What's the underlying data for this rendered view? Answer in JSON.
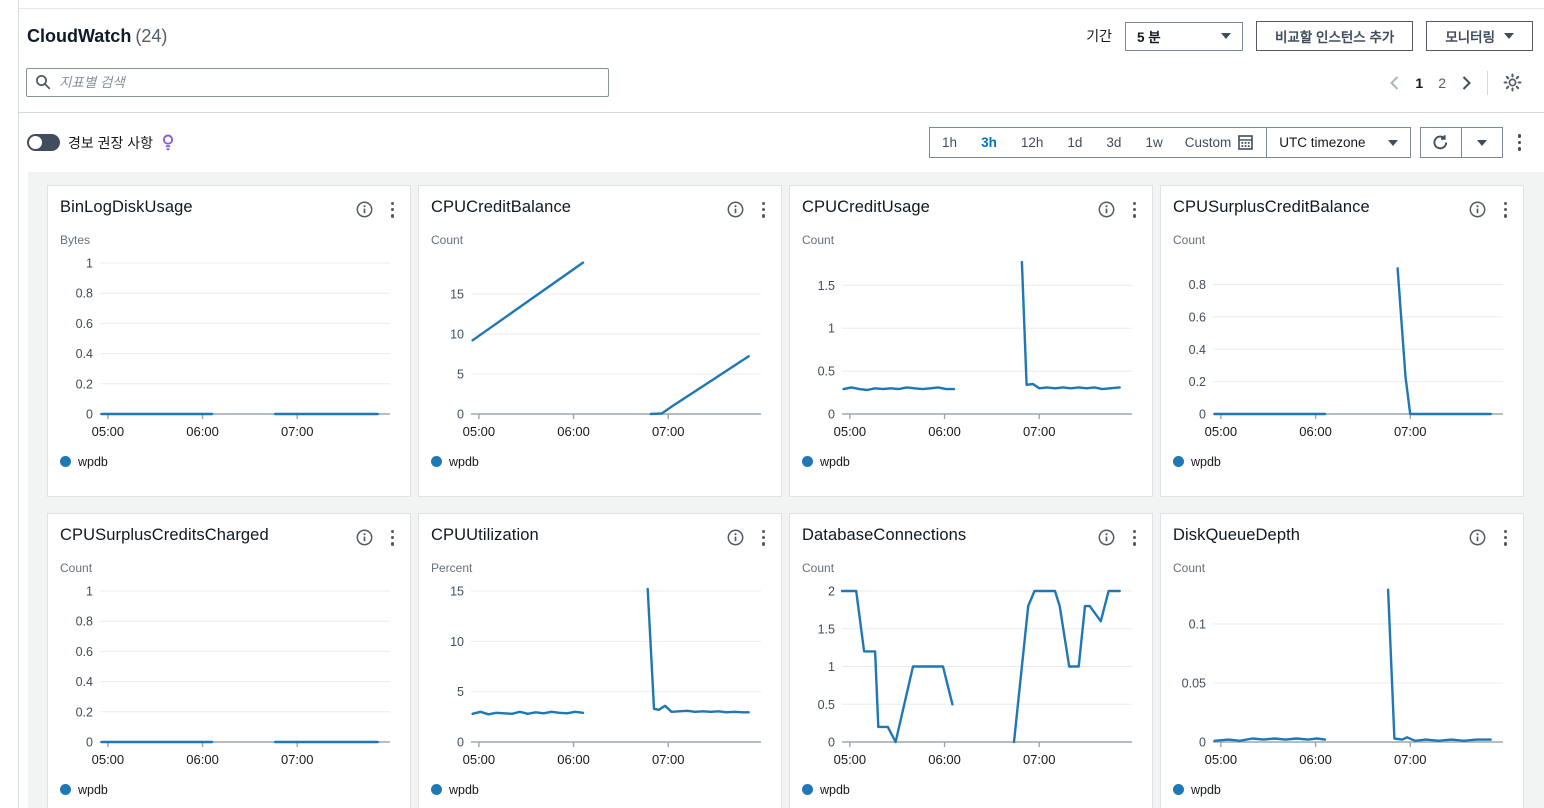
{
  "header": {
    "title": "CloudWatch",
    "count": "(24)",
    "period_label": "기간",
    "period_value": "5 분",
    "compare_instances_button": "비교할 인스턴스 추가",
    "monitoring_button": "모니터링"
  },
  "search": {
    "placeholder": "지표별 검색"
  },
  "pagination": {
    "page_1": "1",
    "page_2": "2"
  },
  "toolbar": {
    "alarm_recommendations_label": "경보 권장 사항",
    "ranges": [
      "1h",
      "3h",
      "12h",
      "1d",
      "3d",
      "1w"
    ],
    "selected_range": "3h",
    "custom_label": "Custom",
    "timezone_value": "UTC timezone"
  },
  "colors": {
    "line": "#1f77b4",
    "selected_range": "#0073bb",
    "bulb": "#8b5bd6"
  },
  "x_axis": {
    "ticks": [
      "05:00",
      "06:00",
      "07:00"
    ],
    "range": [
      "04:55",
      "07:55"
    ]
  },
  "chart_data": [
    {
      "type": "line",
      "title": "BinLogDiskUsage",
      "ylabel": "Bytes",
      "yticks": [
        1,
        0.8,
        0.6,
        0.4,
        0.2,
        0
      ],
      "ymax": 1.04,
      "series": [
        {
          "name": "wpdb",
          "segments": [
            [
              [
                "04:56",
                0
              ],
              [
                "06:06",
                0
              ]
            ],
            [
              [
                "06:46",
                0
              ],
              [
                "07:51",
                0
              ]
            ]
          ]
        }
      ]
    },
    {
      "type": "line",
      "title": "CPUCreditBalance",
      "ylabel": "Count",
      "yticks": [
        15,
        10,
        5,
        0
      ],
      "ymax": 19.6,
      "series": [
        {
          "name": "wpdb",
          "segments": [
            [
              [
                "04:56",
                9.2
              ],
              [
                "06:06",
                18.9
              ]
            ],
            [
              [
                "06:49",
                0
              ],
              [
                "06:56",
                0.08
              ],
              [
                "07:02",
                0.9
              ],
              [
                "07:51",
                7.2
              ]
            ]
          ]
        }
      ]
    },
    {
      "type": "line",
      "title": "CPUCreditUsage",
      "ylabel": "Count",
      "yticks": [
        1.5,
        1,
        0.5,
        0
      ],
      "ymax": 1.83,
      "series": [
        {
          "name": "wpdb",
          "segments": [
            [
              [
                "04:56",
                0.29
              ],
              [
                "05:01",
                0.31
              ],
              [
                "05:06",
                0.29
              ],
              [
                "05:11",
                0.28
              ],
              [
                "05:16",
                0.3
              ],
              [
                "05:21",
                0.29
              ],
              [
                "05:26",
                0.3
              ],
              [
                "05:31",
                0.29
              ],
              [
                "05:36",
                0.31
              ],
              [
                "05:41",
                0.3
              ],
              [
                "05:46",
                0.29
              ],
              [
                "05:51",
                0.3
              ],
              [
                "05:56",
                0.31
              ],
              [
                "06:01",
                0.29
              ],
              [
                "06:06",
                0.29
              ]
            ],
            [
              [
                "06:49",
                1.77
              ],
              [
                "06:52",
                0.34
              ],
              [
                "06:56",
                0.35
              ],
              [
                "07:00",
                0.3
              ],
              [
                "07:05",
                0.31
              ],
              [
                "07:10",
                0.3
              ],
              [
                "07:15",
                0.31
              ],
              [
                "07:20",
                0.3
              ],
              [
                "07:25",
                0.31
              ],
              [
                "07:30",
                0.3
              ],
              [
                "07:35",
                0.31
              ],
              [
                "07:40",
                0.29
              ],
              [
                "07:45",
                0.3
              ],
              [
                "07:51",
                0.31
              ]
            ]
          ]
        }
      ]
    },
    {
      "type": "line",
      "title": "CPUSurplusCreditBalance",
      "ylabel": "Count",
      "yticks": [
        0.8,
        0.6,
        0.4,
        0.2,
        0
      ],
      "ymax": 0.97,
      "series": [
        {
          "name": "wpdb",
          "segments": [
            [
              [
                "04:56",
                0
              ],
              [
                "06:06",
                0
              ]
            ],
            [
              [
                "06:52",
                0.9
              ],
              [
                "06:57",
                0.23
              ],
              [
                "07:00",
                0
              ],
              [
                "07:51",
                0
              ]
            ]
          ]
        }
      ]
    },
    {
      "type": "line",
      "title": "CPUSurplusCreditsCharged",
      "ylabel": "Count",
      "yticks": [
        1,
        0.8,
        0.6,
        0.4,
        0.2,
        0
      ],
      "ymax": 1.04,
      "series": [
        {
          "name": "wpdb",
          "segments": [
            [
              [
                "04:56",
                0
              ],
              [
                "06:06",
                0
              ]
            ],
            [
              [
                "06:46",
                0
              ],
              [
                "07:51",
                0
              ]
            ]
          ]
        }
      ]
    },
    {
      "type": "line",
      "title": "CPUUtilization",
      "ylabel": "Percent",
      "yticks": [
        15,
        10,
        5,
        0
      ],
      "ymax": 15.6,
      "series": [
        {
          "name": "wpdb",
          "segments": [
            [
              [
                "04:56",
                2.8
              ],
              [
                "05:01",
                3.0
              ],
              [
                "05:06",
                2.75
              ],
              [
                "05:11",
                2.9
              ],
              [
                "05:16",
                2.85
              ],
              [
                "05:21",
                2.8
              ],
              [
                "05:26",
                3.0
              ],
              [
                "05:31",
                2.8
              ],
              [
                "05:36",
                2.95
              ],
              [
                "05:41",
                2.85
              ],
              [
                "05:46",
                3.0
              ],
              [
                "05:51",
                2.9
              ],
              [
                "05:56",
                2.85
              ],
              [
                "06:01",
                3.0
              ],
              [
                "06:06",
                2.9
              ]
            ],
            [
              [
                "06:47",
                15.2
              ],
              [
                "06:51",
                3.3
              ],
              [
                "06:54",
                3.2
              ],
              [
                "06:58",
                3.6
              ],
              [
                "07:02",
                3.0
              ],
              [
                "07:07",
                3.05
              ],
              [
                "07:12",
                3.1
              ],
              [
                "07:17",
                3.0
              ],
              [
                "07:22",
                3.05
              ],
              [
                "07:27",
                3.0
              ],
              [
                "07:32",
                3.05
              ],
              [
                "07:37",
                2.95
              ],
              [
                "07:42",
                3.0
              ],
              [
                "07:47",
                2.95
              ],
              [
                "07:51",
                2.95
              ]
            ]
          ]
        }
      ]
    },
    {
      "type": "line",
      "title": "DatabaseConnections",
      "ylabel": "Count",
      "yticks": [
        2,
        1.5,
        1,
        0.5,
        0
      ],
      "ymax": 2.08,
      "series": [
        {
          "name": "wpdb",
          "segments": [
            [
              [
                "04:55",
                2
              ],
              [
                "05:04",
                2
              ],
              [
                "05:09",
                1.2
              ],
              [
                "05:16",
                1.2
              ],
              [
                "05:18",
                0.2
              ],
              [
                "05:24",
                0.2
              ],
              [
                "05:29",
                0
              ],
              [
                "05:40",
                1
              ],
              [
                "05:59",
                1
              ],
              [
                "06:05",
                0.5
              ]
            ],
            [
              [
                "06:44",
                0
              ],
              [
                "06:53",
                1.8
              ],
              [
                "06:57",
                2
              ],
              [
                "07:10",
                2
              ],
              [
                "07:13",
                1.8
              ],
              [
                "07:19",
                1
              ],
              [
                "07:25",
                1
              ],
              [
                "07:29",
                1.8
              ],
              [
                "07:32",
                1.8
              ],
              [
                "07:39",
                1.6
              ],
              [
                "07:44",
                2
              ],
              [
                "07:51",
                2
              ]
            ]
          ]
        }
      ]
    },
    {
      "type": "line",
      "title": "DiskQueueDepth",
      "ylabel": "Count",
      "yticks": [
        0.1,
        0.05,
        0
      ],
      "ymax": 0.133,
      "series": [
        {
          "name": "wpdb",
          "segments": [
            [
              [
                "04:56",
                0.001
              ],
              [
                "05:05",
                0.002
              ],
              [
                "05:12",
                0.001
              ],
              [
                "05:20",
                0.003
              ],
              [
                "05:27",
                0.002
              ],
              [
                "05:34",
                0.003
              ],
              [
                "05:41",
                0.002
              ],
              [
                "05:48",
                0.003
              ],
              [
                "05:55",
                0.002
              ],
              [
                "06:01",
                0.003
              ],
              [
                "06:06",
                0.002
              ]
            ],
            [
              [
                "06:46",
                0.129
              ],
              [
                "06:50",
                0.003
              ],
              [
                "06:55",
                0.002
              ],
              [
                "06:58",
                0.004
              ],
              [
                "07:03",
                0.001
              ],
              [
                "07:10",
                0.002
              ],
              [
                "07:18",
                0.001
              ],
              [
                "07:26",
                0.002
              ],
              [
                "07:34",
                0.001
              ],
              [
                "07:42",
                0.002
              ],
              [
                "07:51",
                0.002
              ]
            ]
          ]
        }
      ]
    }
  ]
}
